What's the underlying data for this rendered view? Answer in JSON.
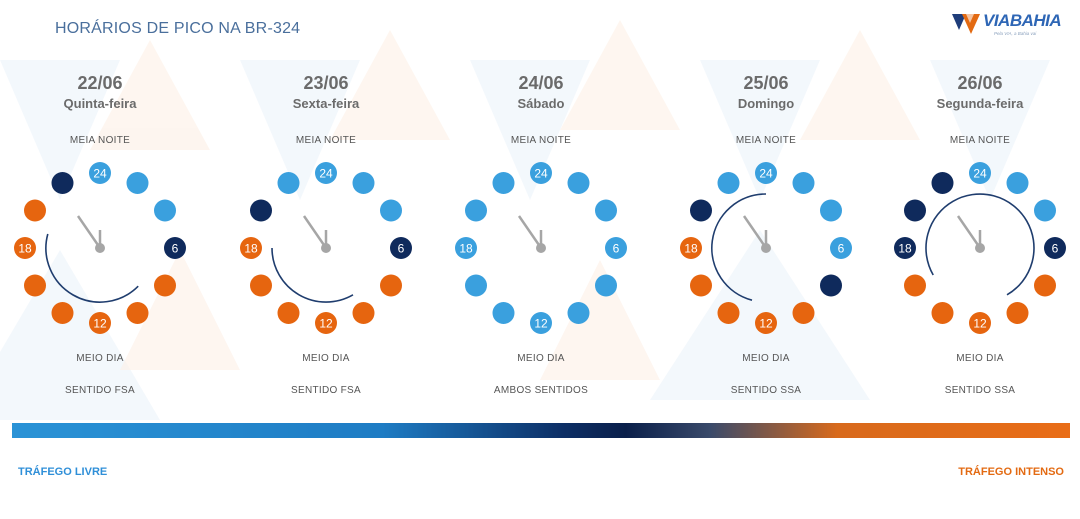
{
  "title": "HORÁRIOS DE PICO NA BR-324",
  "logo": {
    "name": "VIABAHIA",
    "tagline": "Pela VIA, a Bahia vai"
  },
  "colors": {
    "free": "#3aa0de",
    "dark": "#0f2a5c",
    "orange": "#e6650f",
    "arc": "#1f3d6e",
    "hand": "#a6a6a6"
  },
  "days": [
    {
      "date": "22/06",
      "weekday": "Quinta-feira",
      "top_label": "MEIA NOITE",
      "bottom_label": "MEIO DIA",
      "direction": "SENTIDO FSA",
      "hours": [
        "free",
        "free",
        "free",
        "dark",
        "orange",
        "orange",
        "orange",
        "orange",
        "orange",
        "orange",
        "orange",
        "dark"
      ],
      "arc": [
        9,
        19
      ]
    },
    {
      "date": "23/06",
      "weekday": "Sexta-feira",
      "top_label": "MEIA NOITE",
      "bottom_label": "MEIO DIA",
      "direction": "SENTIDO FSA",
      "hours": [
        "free",
        "free",
        "free",
        "dark",
        "orange",
        "orange",
        "orange",
        "orange",
        "orange",
        "orange",
        "dark",
        "free"
      ],
      "arc": [
        10,
        18
      ]
    },
    {
      "date": "24/06",
      "weekday": "Sábado",
      "top_label": "MEIA NOITE",
      "bottom_label": "MEIO DIA",
      "direction": "AMBOS SENTIDOS",
      "hours": [
        "free",
        "free",
        "free",
        "free",
        "free",
        "free",
        "free",
        "free",
        "free",
        "free",
        "free",
        "free"
      ],
      "arc": null
    },
    {
      "date": "25/06",
      "weekday": "Domingo",
      "top_label": "MEIA NOITE",
      "bottom_label": "MEIO DIA",
      "direction": "SENTIDO SSA",
      "hours": [
        "free",
        "free",
        "free",
        "free",
        "dark",
        "orange",
        "orange",
        "orange",
        "orange",
        "orange",
        "dark",
        "free"
      ],
      "arc": [
        13,
        24
      ]
    },
    {
      "date": "26/06",
      "weekday": "Segunda-feira",
      "top_label": "MEIA NOITE",
      "bottom_label": "MEIO DIA",
      "direction": "SENTIDO SSA",
      "hours": [
        "free",
        "free",
        "free",
        "dark",
        "orange",
        "orange",
        "orange",
        "orange",
        "orange",
        "dark",
        "dark",
        "dark"
      ],
      "arc": [
        16,
        10
      ]
    }
  ],
  "legend": {
    "free": "TRÁFEGO LIVRE",
    "heavy": "TRÁFEGO INTENSO"
  }
}
